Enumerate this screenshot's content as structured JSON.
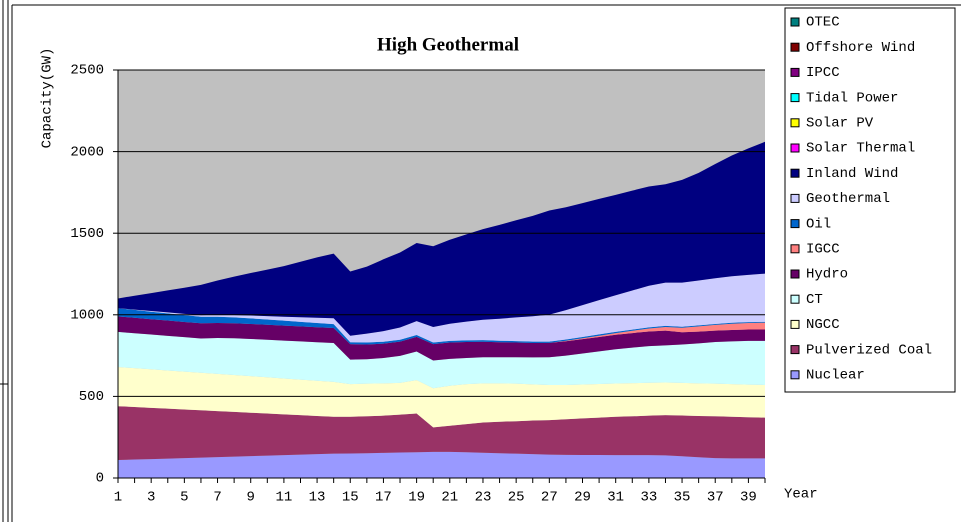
{
  "chart_data": {
    "type": "stacked-area",
    "title": "High Geothermal",
    "y_label": "Capacity(GW)",
    "x_label": "Year",
    "categories": [
      1,
      null,
      3,
      null,
      5,
      null,
      7,
      null,
      9,
      null,
      11,
      null,
      13,
      null,
      15,
      null,
      17,
      null,
      19,
      null,
      21,
      null,
      23,
      null,
      25,
      null,
      27,
      null,
      29,
      null,
      31,
      null,
      33,
      null,
      35,
      null,
      37,
      null,
      39,
      null
    ],
    "ylim": [
      0,
      2500
    ],
    "yticks": [
      0,
      500,
      1000,
      1500,
      2000,
      2500
    ],
    "grid": true,
    "plot_background": "#c0c0c0",
    "legend": "right",
    "series": [
      {
        "name": "Nuclear",
        "color": "#9999ff",
        "values": [
          110,
          113,
          116,
          119,
          122,
          125,
          128,
          131,
          134,
          137,
          140,
          143,
          146,
          149,
          150,
          152,
          154,
          156,
          158,
          160,
          160,
          158,
          155,
          152,
          149,
          146,
          143,
          142,
          141,
          141,
          140,
          140,
          140,
          139,
          133,
          127,
          122,
          120,
          120,
          120
        ]
      },
      {
        "name": "Pulverized Coal",
        "color": "#993366",
        "values": [
          330,
          322,
          314,
          306,
          298,
          290,
          282,
          274,
          266,
          258,
          250,
          242,
          234,
          226,
          225,
          226,
          228,
          232,
          237,
          150,
          160,
          172,
          185,
          193,
          199,
          206,
          212,
          218,
          224,
          229,
          235,
          238,
          242,
          246,
          250,
          253,
          256,
          255,
          252,
          250
        ]
      },
      {
        "name": "NGCC",
        "color": "#ffffcc",
        "values": [
          240,
          238,
          236,
          234,
          232,
          230,
          228,
          226,
          224,
          222,
          220,
          218,
          216,
          214,
          200,
          200,
          198,
          195,
          205,
          240,
          245,
          245,
          240,
          235,
          230,
          222,
          215,
          210,
          208,
          206,
          204,
          203,
          202,
          200,
          200,
          200,
          200,
          200,
          200,
          200
        ]
      },
      {
        "name": "CT",
        "color": "#ccffff",
        "values": [
          215,
          214,
          213,
          212,
          211,
          210,
          220,
          225,
          228,
          230,
          232,
          234,
          236,
          238,
          150,
          150,
          155,
          165,
          175,
          170,
          165,
          160,
          160,
          160,
          162,
          165,
          170,
          180,
          190,
          200,
          210,
          218,
          224,
          228,
          235,
          245,
          255,
          262,
          268,
          270
        ]
      },
      {
        "name": "Hydro",
        "color": "#660066",
        "values": [
          95,
          95,
          94,
          94,
          93,
          93,
          92,
          92,
          92,
          92,
          92,
          92,
          92,
          92,
          95,
          90,
          88,
          88,
          90,
          100,
          100,
          98,
          95,
          92,
          90,
          88,
          88,
          88,
          88,
          88,
          89,
          89,
          90,
          90,
          75,
          72,
          70,
          70,
          70,
          70
        ]
      },
      {
        "name": "IGCC",
        "color": "#ff8080",
        "values": [
          0,
          0,
          0,
          0,
          0,
          0,
          0,
          0,
          0,
          0,
          0,
          0,
          0,
          0,
          0,
          0,
          0,
          0,
          0,
          0,
          0,
          0,
          0,
          0,
          0,
          0,
          0,
          3,
          5,
          8,
          10,
          14,
          18,
          22,
          28,
          32,
          35,
          38,
          40,
          42
        ]
      },
      {
        "name": "Oil",
        "color": "#0066cc",
        "values": [
          50,
          48,
          46,
          44,
          42,
          40,
          38,
          36,
          34,
          32,
          30,
          28,
          26,
          24,
          12,
          12,
          12,
          11,
          11,
          10,
          10,
          10,
          10,
          9,
          9,
          9,
          8,
          8,
          8,
          8,
          7,
          7,
          7,
          7,
          6,
          6,
          6,
          6,
          5,
          5
        ]
      },
      {
        "name": "Geothermal",
        "color": "#ccccff",
        "values": [
          0,
          2,
          4,
          6,
          8,
          10,
          12,
          15,
          18,
          21,
          24,
          28,
          32,
          36,
          40,
          55,
          65,
          75,
          85,
          95,
          105,
          115,
          125,
          135,
          145,
          155,
          165,
          180,
          195,
          210,
          225,
          240,
          255,
          265,
          270,
          275,
          280,
          285,
          290,
          295
        ]
      },
      {
        "name": "Inland Wind",
        "color": "#000080",
        "values": [
          60,
          85,
          110,
          135,
          160,
          185,
          210,
          235,
          260,
          285,
          310,
          340,
          370,
          396,
          393,
          410,
          440,
          460,
          479,
          495,
          515,
          535,
          555,
          575,
          595,
          615,
          638,
          630,
          625,
          620,
          615,
          612,
          608,
          603,
          630,
          660,
          700,
          740,
          775,
          808
        ]
      },
      {
        "name": "Solar Thermal",
        "color": "#ff00ff",
        "values": [
          0,
          0,
          0,
          0,
          0,
          0,
          0,
          0,
          0,
          0,
          0,
          0,
          0,
          0,
          0,
          0,
          0,
          0,
          0,
          0,
          0,
          0,
          0,
          0,
          0,
          0,
          0,
          0,
          0,
          0,
          0,
          0,
          0,
          0,
          0,
          0,
          0,
          0,
          0,
          0
        ]
      },
      {
        "name": "Solar PV",
        "color": "#ffff00",
        "values": [
          0,
          0,
          0,
          0,
          0,
          0,
          0,
          0,
          0,
          0,
          0,
          0,
          0,
          0,
          0,
          0,
          0,
          0,
          0,
          0,
          0,
          0,
          0,
          0,
          0,
          0,
          0,
          0,
          0,
          0,
          0,
          0,
          0,
          0,
          0,
          0,
          0,
          0,
          0,
          0
        ]
      },
      {
        "name": "Tidal Power",
        "color": "#00ffff",
        "values": [
          0,
          0,
          0,
          0,
          0,
          0,
          0,
          0,
          0,
          0,
          0,
          0,
          0,
          0,
          0,
          0,
          0,
          0,
          0,
          0,
          0,
          0,
          0,
          0,
          0,
          0,
          0,
          0,
          0,
          0,
          0,
          0,
          0,
          0,
          0,
          0,
          0,
          0,
          0,
          0
        ]
      },
      {
        "name": "IPCC",
        "color": "#800080",
        "values": [
          0,
          0,
          0,
          0,
          0,
          0,
          0,
          0,
          0,
          0,
          0,
          0,
          0,
          0,
          0,
          0,
          0,
          0,
          0,
          0,
          0,
          0,
          0,
          0,
          0,
          0,
          0,
          0,
          0,
          0,
          0,
          0,
          0,
          0,
          0,
          0,
          0,
          0,
          0,
          0
        ]
      },
      {
        "name": "Offshore Wind",
        "color": "#800000",
        "values": [
          0,
          0,
          0,
          0,
          0,
          0,
          0,
          0,
          0,
          0,
          0,
          0,
          0,
          0,
          0,
          0,
          0,
          0,
          0,
          0,
          0,
          0,
          0,
          0,
          0,
          0,
          0,
          0,
          0,
          0,
          0,
          0,
          0,
          0,
          0,
          0,
          0,
          0,
          0,
          0
        ]
      },
      {
        "name": "OTEC",
        "color": "#008080",
        "values": [
          0,
          0,
          0,
          0,
          0,
          0,
          0,
          0,
          0,
          0,
          0,
          0,
          0,
          0,
          0,
          0,
          0,
          0,
          0,
          0,
          0,
          0,
          0,
          0,
          0,
          0,
          0,
          0,
          0,
          0,
          0,
          0,
          0,
          0,
          0,
          0,
          0,
          0,
          0,
          0
        ]
      }
    ]
  }
}
